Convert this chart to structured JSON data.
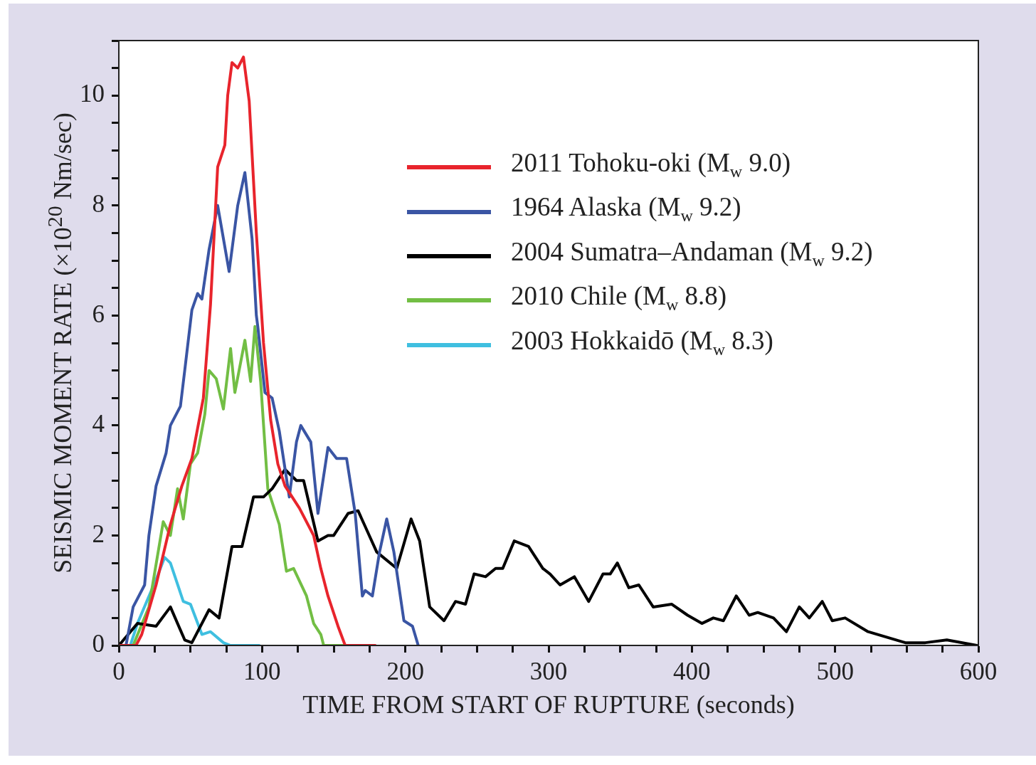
{
  "chart_data": {
    "type": "line",
    "xlabel": "TIME FROM START OF RUPTURE (seconds)",
    "ylabel": "SEISMIC MOMENT RATE (×10$^{20}$ Nm/sec)",
    "xlim": [
      0,
      600
    ],
    "ylim": [
      0,
      11
    ],
    "xticks": [
      0,
      {
        "value": 25,
        "label": null
      },
      {
        "value": 50,
        "label": null
      },
      {
        "value": 75,
        "label": null
      },
      100,
      {
        "value": 125,
        "label": null
      },
      {
        "value": 150,
        "label": null
      },
      {
        "value": 175,
        "label": null
      },
      200,
      {
        "value": 225,
        "label": null
      },
      {
        "value": 250,
        "label": null
      },
      {
        "value": 275,
        "label": null
      },
      300,
      {
        "value": 325,
        "label": null
      },
      {
        "value": 350,
        "label": null
      },
      {
        "value": 375,
        "label": null
      },
      400,
      {
        "value": 425,
        "label": null
      },
      {
        "value": 450,
        "label": null
      },
      {
        "value": 475,
        "label": null
      },
      500,
      {
        "value": 525,
        "label": null
      },
      {
        "value": 550,
        "label": null
      },
      {
        "value": 575,
        "label": null
      },
      600
    ],
    "yticks": [
      0,
      {
        "value": 0.5,
        "label": null
      },
      {
        "value": 1,
        "label": null
      },
      {
        "value": 1.5,
        "label": null
      },
      2,
      {
        "value": 2.5,
        "label": null
      },
      {
        "value": 3,
        "label": null
      },
      {
        "value": 3.5,
        "label": null
      },
      4,
      {
        "value": 4.5,
        "label": null
      },
      {
        "value": 5,
        "label": null
      },
      {
        "value": 5.5,
        "label": null
      },
      6,
      {
        "value": 6.5,
        "label": null
      },
      {
        "value": 7,
        "label": null
      },
      {
        "value": 7.5,
        "label": null
      },
      8,
      {
        "value": 8.5,
        "label": null
      },
      {
        "value": 9,
        "label": null
      },
      {
        "value": 9.5,
        "label": null
      },
      10,
      {
        "value": 10.5,
        "label": null
      },
      {
        "value": 11,
        "label": null
      }
    ],
    "legend": "top right",
    "marker": "none",
    "line_style": "solid",
    "series": [
      {
        "name": "2011 Tohoku-oki (M$_{w}$ 9.0)",
        "color": "#e8242c",
        "x": [
          0,
          12,
          16,
          26,
          36,
          44,
          51,
          59,
          64,
          69,
          74,
          76,
          79,
          83,
          87,
          91,
          96,
          101,
          106,
          111,
          116,
          126,
          136,
          141,
          146,
          153,
          158,
          179
        ],
        "values": [
          0,
          0,
          0.2,
          1.1,
          2.2,
          2.9,
          3.4,
          4.5,
          6.2,
          8.7,
          9.1,
          10,
          10.6,
          10.5,
          10.7,
          9.9,
          7.5,
          5.5,
          4.1,
          3.3,
          2.9,
          2.5,
          2,
          1.4,
          0.9,
          0.35,
          0,
          0
        ]
      },
      {
        "name": "1964 Alaska (M$_{w}$ 9.2)",
        "color": "#3a55a4",
        "x": [
          0,
          5,
          10,
          18,
          21,
          26,
          33,
          36,
          43,
          46,
          51,
          55,
          58,
          63,
          69,
          77,
          83,
          88,
          93,
          96,
          97,
          102,
          107,
          112,
          119,
          124,
          127,
          134,
          139,
          146,
          152,
          159,
          165,
          170,
          172,
          177,
          182,
          187,
          192,
          199,
          205,
          209
        ],
        "values": [
          0,
          0,
          0.7,
          1.1,
          2,
          2.9,
          3.5,
          4,
          4.35,
          5,
          6.1,
          6.4,
          6.3,
          7.2,
          8,
          6.8,
          8,
          8.6,
          7.4,
          6,
          5.8,
          4.6,
          4.5,
          3.9,
          2.7,
          3.7,
          4,
          3.7,
          2.4,
          3.6,
          3.4,
          3.4,
          2.4,
          0.9,
          1,
          0.9,
          1.7,
          2.3,
          1.7,
          0.45,
          0.35,
          0
        ]
      },
      {
        "name": "2004 Sumatra–Andaman (M$_{w}$ 9.2)",
        "color": "#000000",
        "x": [
          0,
          13,
          26,
          36,
          46,
          51,
          63,
          70,
          79,
          86,
          94,
          101,
          107,
          116,
          124,
          129,
          139,
          146,
          150,
          160,
          167,
          180,
          194,
          204,
          210,
          217,
          227,
          235,
          242,
          248,
          256,
          263,
          268,
          276,
          286,
          296,
          301,
          308,
          318,
          328,
          338,
          343,
          348,
          356,
          363,
          373,
          386,
          397,
          407,
          415,
          422,
          431,
          440,
          446,
          457,
          466,
          475,
          482,
          491,
          498,
          507,
          523,
          536,
          549,
          563,
          578,
          599
        ],
        "values": [
          0,
          0.4,
          0.35,
          0.7,
          0.1,
          0.05,
          0.65,
          0.5,
          1.8,
          1.8,
          2.7,
          2.7,
          2.85,
          3.2,
          3,
          3,
          1.9,
          2,
          2,
          2.4,
          2.45,
          1.7,
          1.4,
          2.3,
          1.9,
          0.7,
          0.45,
          0.8,
          0.75,
          1.3,
          1.25,
          1.4,
          1.4,
          1.9,
          1.8,
          1.4,
          1.3,
          1.1,
          1.25,
          0.8,
          1.3,
          1.3,
          1.5,
          1.05,
          1.1,
          0.7,
          0.75,
          0.55,
          0.4,
          0.5,
          0.45,
          0.9,
          0.55,
          0.6,
          0.5,
          0.25,
          0.7,
          0.5,
          0.8,
          0.45,
          0.5,
          0.25,
          0.15,
          0.05,
          0.05,
          0.1,
          0
        ]
      },
      {
        "name": "2010 Chile (M$_{w}$ 8.8)",
        "color": "#72be44",
        "x": [
          0,
          10,
          21,
          31,
          36,
          41,
          45,
          50,
          55,
          60,
          63,
          68,
          73,
          78,
          81,
          88,
          92,
          95,
          99,
          104,
          112,
          117,
          122,
          131,
          136,
          141,
          143,
          159
        ],
        "values": [
          0,
          0,
          0.7,
          2.25,
          2,
          2.85,
          2.3,
          3.3,
          3.5,
          4.2,
          5,
          4.85,
          4.3,
          5.4,
          4.6,
          5.55,
          4.8,
          5.8,
          4.8,
          2.85,
          2.2,
          1.35,
          1.4,
          0.9,
          0.4,
          0.2,
          0,
          0
        ]
      },
      {
        "name": "2003 Hokkaidō (M$_{w}$ 8.3)",
        "color": "#3fbfe0",
        "x": [
          0,
          8,
          13,
          26,
          32,
          36,
          45,
          50,
          58,
          64,
          73,
          78,
          98
        ],
        "values": [
          0,
          0,
          0.4,
          1.2,
          1.6,
          1.5,
          0.8,
          0.75,
          0.2,
          0.25,
          0.05,
          0,
          0
        ]
      }
    ]
  }
}
